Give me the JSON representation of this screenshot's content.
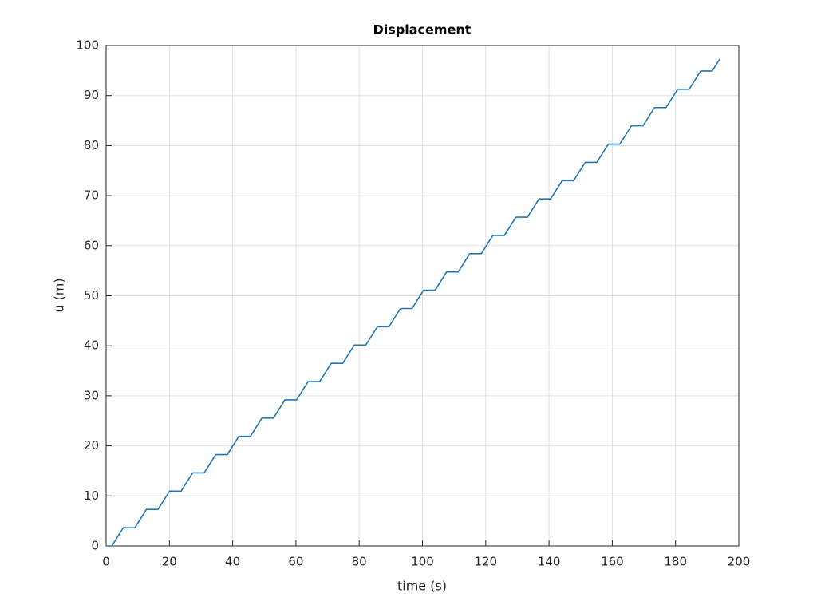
{
  "chart_data": {
    "type": "line",
    "title": "Displacement",
    "xlabel": "time (s)",
    "ylabel": "u (m)",
    "x": [
      0,
      1.8,
      5.45,
      9.1,
      12.75,
      16.4,
      20.05,
      23.7,
      27.35,
      31.0,
      34.65,
      38.3,
      41.95,
      45.6,
      49.25,
      52.9,
      56.55,
      60.2,
      63.85,
      67.5,
      71.15,
      74.8,
      78.45,
      82.1,
      85.75,
      89.4,
      93.05,
      96.7,
      100.35,
      104.0,
      107.65,
      111.3,
      114.95,
      118.6,
      122.25,
      125.9,
      129.55,
      133.2,
      136.85,
      140.5,
      144.15,
      147.8,
      151.45,
      155.1,
      158.75,
      162.4,
      166.05,
      169.7,
      173.35,
      177.0,
      180.65,
      184.3,
      187.95,
      191.6,
      194.0
    ],
    "series": [
      {
        "color": "#1f77b4",
        "values": [
          0,
          0,
          3.65,
          3.65,
          7.3,
          7.3,
          10.95,
          10.95,
          14.6,
          14.6,
          18.25,
          18.25,
          21.9,
          21.9,
          25.55,
          25.55,
          29.2,
          29.2,
          32.85,
          32.85,
          36.5,
          36.5,
          40.15,
          40.15,
          43.8,
          43.8,
          47.45,
          47.45,
          51.1,
          51.1,
          54.75,
          54.75,
          58.4,
          58.4,
          62.05,
          62.05,
          65.7,
          65.7,
          69.35,
          69.35,
          73.0,
          73.0,
          76.65,
          76.65,
          80.3,
          80.3,
          83.95,
          83.95,
          87.6,
          87.6,
          91.25,
          91.25,
          94.9,
          94.9,
          97.3
        ]
      }
    ],
    "xlim": [
      0,
      200
    ],
    "xticks": [
      0,
      20,
      40,
      60,
      80,
      100,
      120,
      140,
      160,
      180,
      200
    ],
    "ylim": [
      0,
      100
    ],
    "yticks": [
      0,
      10,
      20,
      30,
      40,
      50,
      60,
      70,
      80,
      90,
      100
    ],
    "grid": true
  }
}
